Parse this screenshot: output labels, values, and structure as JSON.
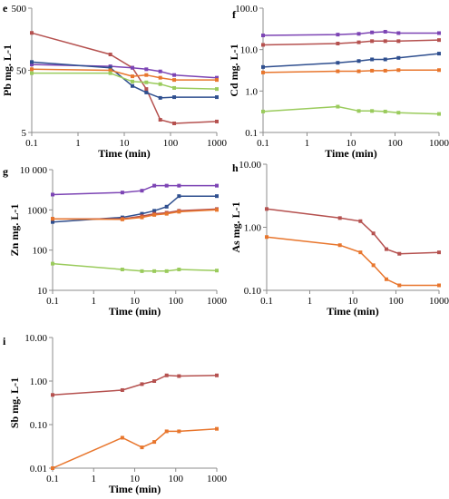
{
  "colors": {
    "red": "#b5514f",
    "purple": "#7c44b4",
    "blue": "#2f4f8f",
    "orange": "#e8762d",
    "green": "#9acb5c"
  },
  "chart_data": [
    {
      "id": "e",
      "panel_letter": "e",
      "type": "line",
      "xscale": "log",
      "yscale": "log",
      "xlim": [
        0.1,
        1000
      ],
      "ylim": [
        5,
        500
      ],
      "xticks": [
        "0.1",
        "1",
        "10",
        "100",
        "1000"
      ],
      "yticks": [
        "5",
        "50",
        "500"
      ],
      "xlabel": "Time (min)",
      "ylabel": "Pb mg. L-1",
      "grid": false,
      "series": [
        {
          "color": "red",
          "x": [
            0.1,
            5,
            15,
            30,
            60,
            120,
            1000
          ],
          "y": [
            200,
            90,
            55,
            25,
            8,
            7,
            7.5
          ]
        },
        {
          "color": "purple",
          "x": [
            0.1,
            5,
            15,
            30,
            60,
            120,
            1000
          ],
          "y": [
            62,
            58,
            55,
            52,
            48,
            42,
            38
          ]
        },
        {
          "color": "blue",
          "x": [
            0.1,
            5,
            15,
            30,
            60,
            120,
            1000
          ],
          "y": [
            68,
            55,
            28,
            22,
            18,
            18.5,
            18.5
          ]
        },
        {
          "color": "orange",
          "x": [
            0.1,
            5,
            15,
            30,
            60,
            120,
            1000
          ],
          "y": [
            52,
            50,
            40,
            42,
            38,
            35,
            35
          ]
        },
        {
          "color": "green",
          "x": [
            0.1,
            5,
            15,
            30,
            60,
            120,
            1000
          ],
          "y": [
            45,
            45,
            33,
            32,
            30,
            26,
            25
          ]
        }
      ]
    },
    {
      "id": "f",
      "panel_letter": "f",
      "type": "line",
      "xscale": "log",
      "yscale": "log",
      "xlim": [
        0.1,
        1000
      ],
      "ylim": [
        0.1,
        100
      ],
      "xticks": [
        "0.1",
        "1",
        "10",
        "100",
        "1000"
      ],
      "yticks": [
        "0.1",
        "1.0",
        "10.0",
        "100.0"
      ],
      "xlabel": "Time (min)",
      "ylabel": "Cd mg. L-1",
      "grid": false,
      "series": [
        {
          "color": "purple",
          "x": [
            0.1,
            5,
            15,
            30,
            60,
            120,
            1000
          ],
          "y": [
            22,
            23,
            24,
            26,
            27,
            25,
            25
          ]
        },
        {
          "color": "red",
          "x": [
            0.1,
            5,
            15,
            30,
            60,
            120,
            1000
          ],
          "y": [
            13,
            14,
            15,
            16,
            16,
            16,
            17
          ]
        },
        {
          "color": "blue",
          "x": [
            0.1,
            5,
            15,
            30,
            60,
            120,
            1000
          ],
          "y": [
            3.8,
            4.8,
            5.3,
            5.8,
            5.8,
            6.3,
            8
          ]
        },
        {
          "color": "orange",
          "x": [
            0.1,
            5,
            15,
            30,
            60,
            120,
            1000
          ],
          "y": [
            2.8,
            3.0,
            3.0,
            3.1,
            3.1,
            3.2,
            3.2
          ]
        },
        {
          "color": "green",
          "x": [
            0.1,
            5,
            15,
            30,
            60,
            120,
            1000
          ],
          "y": [
            0.32,
            0.42,
            0.33,
            0.33,
            0.32,
            0.3,
            0.28
          ]
        }
      ]
    },
    {
      "id": "g",
      "panel_letter": "g",
      "type": "line",
      "xscale": "log",
      "yscale": "log",
      "xlim": [
        0.1,
        1000
      ],
      "ylim": [
        10,
        10000
      ],
      "xticks": [
        "0.1",
        "1",
        "10",
        "100",
        "1000"
      ],
      "yticks": [
        "10",
        "100",
        "1000",
        "10 000"
      ],
      "xlabel": "Time (min)",
      "ylabel": "Zn mg. L-1",
      "grid": false,
      "series": [
        {
          "color": "purple",
          "x": [
            0.1,
            5,
            15,
            30,
            60,
            120,
            1000
          ],
          "y": [
            2400,
            2700,
            3000,
            4000,
            4000,
            4000,
            4000
          ]
        },
        {
          "color": "blue",
          "x": [
            0.1,
            5,
            15,
            30,
            60,
            120,
            1000
          ],
          "y": [
            500,
            650,
            800,
            950,
            1200,
            2200,
            2200
          ]
        },
        {
          "color": "red",
          "x": [
            0.1,
            5,
            15,
            30,
            60,
            120,
            1000
          ],
          "y": [
            600,
            600,
            700,
            800,
            850,
            950,
            1050
          ]
        },
        {
          "color": "orange",
          "x": [
            0.1,
            5,
            15,
            30,
            60,
            120,
            1000
          ],
          "y": [
            600,
            580,
            650,
            750,
            800,
            900,
            1000
          ]
        },
        {
          "color": "green",
          "x": [
            0.1,
            5,
            15,
            30,
            60,
            120,
            1000
          ],
          "y": [
            46,
            33,
            30,
            30,
            30,
            33,
            31
          ]
        }
      ]
    },
    {
      "id": "h",
      "panel_letter": "h",
      "type": "line",
      "xscale": "log",
      "yscale": "log",
      "xlim": [
        0.1,
        1000
      ],
      "ylim": [
        0.1,
        10
      ],
      "xticks": [
        "0.1",
        "1",
        "10",
        "100",
        "1000"
      ],
      "yticks": [
        "0.10",
        "1.00",
        "10.00"
      ],
      "xlabel": "Time (min)",
      "ylabel": "As mg. L-1",
      "grid": false,
      "series": [
        {
          "color": "red",
          "x": [
            0.1,
            5,
            15,
            30,
            60,
            120,
            1000
          ],
          "y": [
            1.95,
            1.4,
            1.25,
            0.8,
            0.45,
            0.38,
            0.4
          ]
        },
        {
          "color": "orange",
          "x": [
            0.1,
            5,
            15,
            30,
            60,
            120,
            1000
          ],
          "y": [
            0.7,
            0.52,
            0.4,
            0.25,
            0.15,
            0.12,
            0.12
          ]
        }
      ]
    },
    {
      "id": "i",
      "panel_letter": "i",
      "type": "line",
      "xscale": "log",
      "yscale": "log",
      "xlim": [
        0.1,
        1000
      ],
      "ylim": [
        0.01,
        10
      ],
      "xticks": [
        "0.1",
        "1",
        "10",
        "100",
        "1000"
      ],
      "yticks": [
        "0.01",
        "0.10",
        "1.00",
        "10.00"
      ],
      "xlabel": "Time (min)",
      "ylabel": "Sb mg. L-1",
      "grid": false,
      "series": [
        {
          "color": "red",
          "x": [
            0.1,
            5,
            15,
            30,
            60,
            120,
            1000
          ],
          "y": [
            0.48,
            0.62,
            0.85,
            1.0,
            1.35,
            1.3,
            1.35
          ]
        },
        {
          "color": "orange",
          "x": [
            0.1,
            5,
            15,
            30,
            60,
            120,
            1000
          ],
          "y": [
            0.01,
            0.05,
            0.03,
            0.04,
            0.07,
            0.07,
            0.08
          ]
        }
      ]
    }
  ]
}
